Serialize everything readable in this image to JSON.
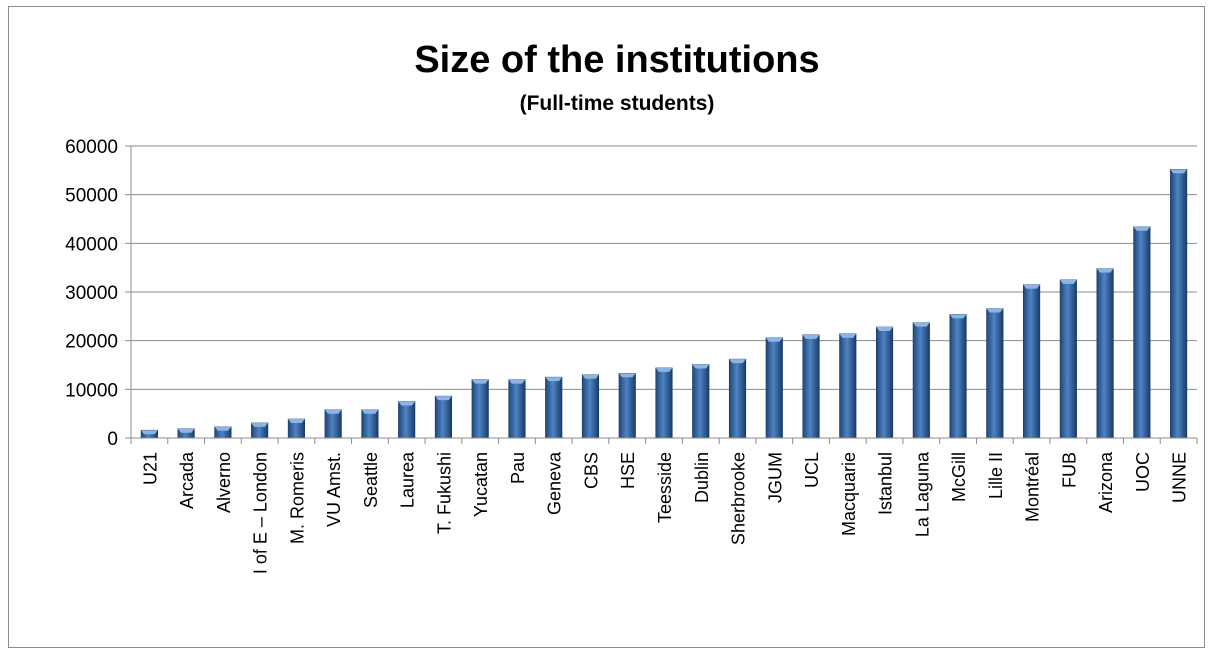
{
  "chart_data": {
    "type": "bar",
    "title": "Size of the institutions",
    "subtitle": "(Full-time students)",
    "xlabel": "",
    "ylabel": "",
    "ylim": [
      0,
      60000
    ],
    "yticks": [
      0,
      10000,
      20000,
      30000,
      40000,
      50000,
      60000
    ],
    "ytick_labels": [
      "0",
      "10000",
      "20000",
      "30000",
      "40000",
      "50000",
      "60000"
    ],
    "grid": true,
    "legend": "none",
    "bar_color": "#2e5f9b",
    "categories": [
      "U21",
      "Arcada",
      "Alverno",
      "I of E – London",
      "M. Romeris",
      "VU Amst.",
      "Seattle",
      "Laurea",
      "T. Fukushi",
      "Yucatan",
      "Pau",
      "Geneva",
      "CBS",
      "HSE",
      "Teesside",
      "Dublin",
      "Sherbrooke",
      "JGUM",
      "UCL",
      "Macquarie",
      "Istanbul",
      "La Laguna",
      "McGill",
      "Lille II",
      "Montréal",
      "FUB",
      "Arizona",
      "UOC",
      "UNNE"
    ],
    "values": [
      1600,
      1900,
      2300,
      3100,
      3900,
      5800,
      5800,
      7500,
      8600,
      12000,
      12000,
      12500,
      13000,
      13300,
      14400,
      15100,
      16200,
      20600,
      21200,
      21400,
      22800,
      23700,
      25400,
      26600,
      31500,
      32500,
      34800,
      43400,
      55200
    ]
  }
}
